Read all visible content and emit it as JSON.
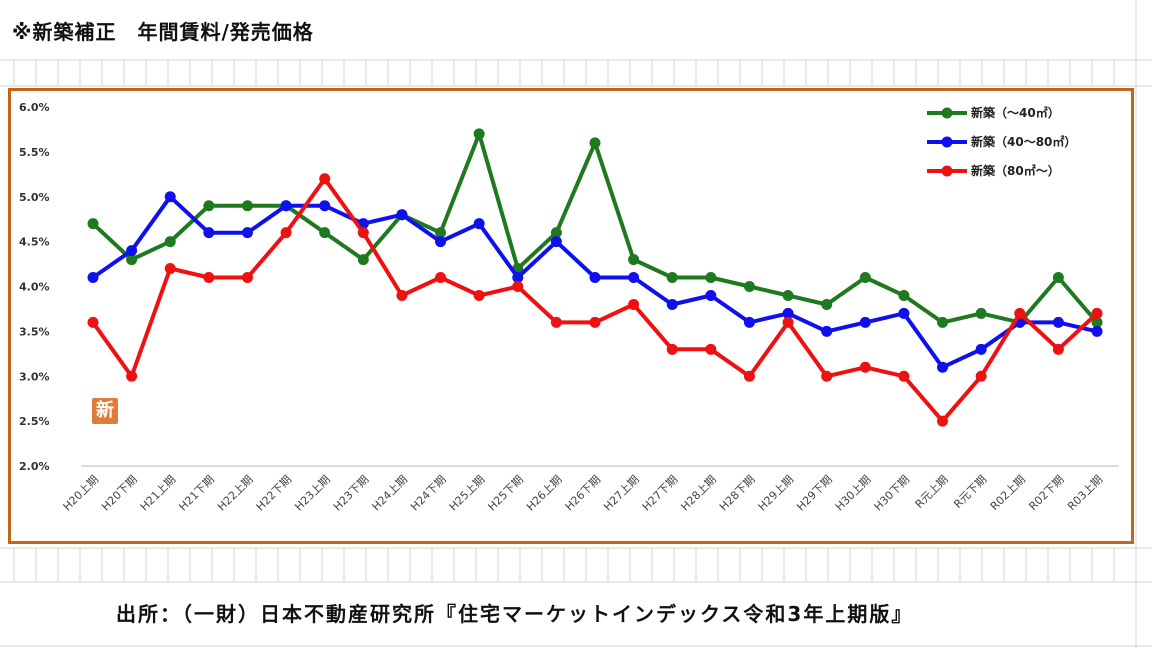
{
  "heading": "※新築補正　年間賃料/発売価格",
  "source": "出所：（一財）日本不動産研究所『住宅マーケットインデックス令和3年上期版』",
  "badge": "新",
  "chart_data": {
    "type": "line",
    "categories": [
      "H20上期",
      "H20下期",
      "H21上期",
      "H21下期",
      "H22上期",
      "H22下期",
      "H23上期",
      "H23下期",
      "H24上期",
      "H24下期",
      "H25上期",
      "H25下期",
      "H26上期",
      "H26下期",
      "H27上期",
      "H27下期",
      "H28上期",
      "H28下期",
      "H29上期",
      "H29下期",
      "H30上期",
      "H30下期",
      "R元上期",
      "R元下期",
      "R02上期",
      "R02下期",
      "R03上期"
    ],
    "ylim": [
      2.0,
      6.0
    ],
    "yticks": [
      "2.0%",
      "2.5%",
      "3.0%",
      "3.5%",
      "4.0%",
      "4.5%",
      "5.0%",
      "5.5%",
      "6.0%"
    ],
    "yticks_values": [
      2.0,
      2.5,
      3.0,
      3.5,
      4.0,
      4.5,
      5.0,
      5.5,
      6.0
    ],
    "legend_position": "top-right",
    "grid": "horizontal baseline only",
    "series": [
      {
        "name": "新築（～40㎡）",
        "color": "#1f7a1f",
        "values": [
          4.7,
          4.3,
          4.5,
          4.9,
          4.9,
          4.9,
          4.6,
          4.3,
          4.8,
          4.6,
          5.7,
          4.2,
          4.6,
          5.6,
          4.3,
          4.1,
          4.1,
          4.0,
          3.9,
          3.8,
          4.1,
          3.9,
          3.6,
          3.7,
          3.6,
          4.1,
          3.6
        ]
      },
      {
        "name": "新築（40～80㎡）",
        "color": "#1010ee",
        "values": [
          4.1,
          4.4,
          5.0,
          4.6,
          4.6,
          4.9,
          4.9,
          4.7,
          4.8,
          4.5,
          4.7,
          4.1,
          4.5,
          4.1,
          4.1,
          3.8,
          3.9,
          3.6,
          3.7,
          3.5,
          3.6,
          3.7,
          3.1,
          3.3,
          3.6,
          3.6,
          3.5
        ]
      },
      {
        "name": "新築（80㎡～）",
        "color": "#ee1111",
        "values": [
          3.6,
          3.0,
          4.2,
          4.1,
          4.1,
          4.6,
          5.2,
          4.6,
          3.9,
          4.1,
          3.9,
          4.0,
          3.6,
          3.6,
          3.8,
          3.3,
          3.3,
          3.0,
          3.6,
          3.0,
          3.1,
          3.0,
          2.5,
          3.0,
          3.7,
          3.3,
          3.7
        ]
      }
    ]
  }
}
